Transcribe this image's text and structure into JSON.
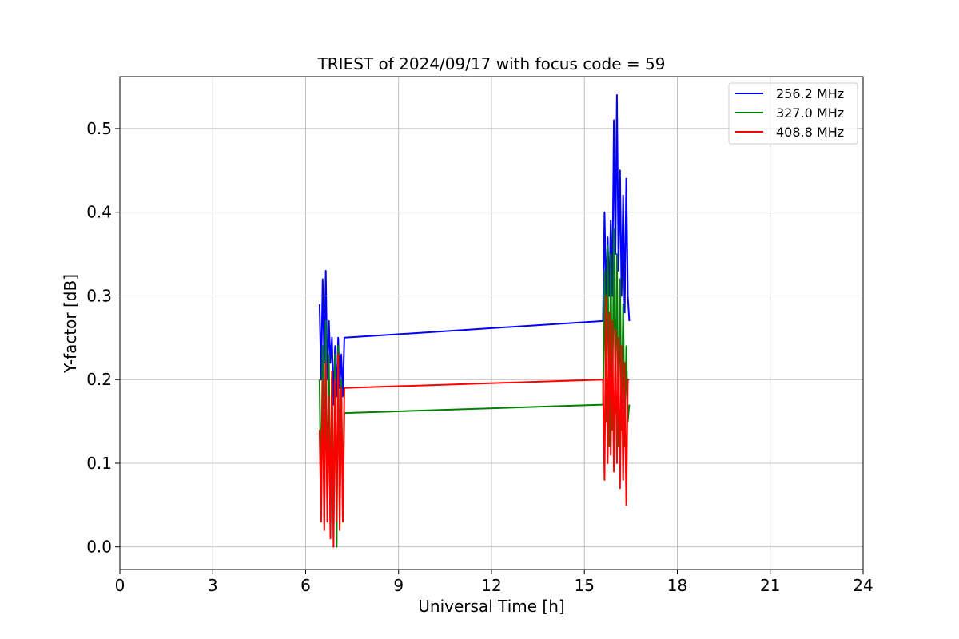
{
  "chart_data": {
    "type": "line",
    "title": "TRIEST of 2024/09/17 with focus code = 59",
    "xlabel": "Universal Time [h]",
    "ylabel": "Y-factor [dB]",
    "xlim": [
      0,
      24
    ],
    "ylim": [
      -0.027,
      0.562
    ],
    "xticks": [
      0,
      3,
      6,
      9,
      12,
      15,
      18,
      21,
      24
    ],
    "xtick_labels": [
      "0",
      "3",
      "6",
      "9",
      "12",
      "15",
      "18",
      "21",
      "24"
    ],
    "yticks": [
      0.0,
      0.1,
      0.2,
      0.3,
      0.4,
      0.5
    ],
    "ytick_labels": [
      "0.0",
      "0.1",
      "0.2",
      "0.3",
      "0.4",
      "0.5"
    ],
    "grid": true,
    "legend_position": "upper right",
    "series": [
      {
        "name": "256.2 MHz",
        "color": "#0000ff",
        "x": [
          6.45,
          6.5,
          6.55,
          6.6,
          6.65,
          6.7,
          6.75,
          6.8,
          6.85,
          6.9,
          6.95,
          7.0,
          7.05,
          7.1,
          7.15,
          7.2,
          7.25,
          15.6,
          15.65,
          15.7,
          15.75,
          15.8,
          15.85,
          15.9,
          15.95,
          16.0,
          16.05,
          16.1,
          16.15,
          16.2,
          16.25,
          16.3,
          16.35,
          16.4,
          16.45
        ],
        "y": [
          0.29,
          0.2,
          0.32,
          0.22,
          0.33,
          0.2,
          0.27,
          0.22,
          0.25,
          0.17,
          0.24,
          0.18,
          0.25,
          0.19,
          0.23,
          0.18,
          0.25,
          0.27,
          0.4,
          0.3,
          0.37,
          0.3,
          0.39,
          0.3,
          0.51,
          0.35,
          0.54,
          0.33,
          0.45,
          0.3,
          0.42,
          0.28,
          0.44,
          0.3,
          0.27
        ]
      },
      {
        "name": "327.0 MHz",
        "color": "#008000",
        "x": [
          6.45,
          6.5,
          6.55,
          6.6,
          6.65,
          6.7,
          6.75,
          6.8,
          6.85,
          6.9,
          6.95,
          7.0,
          7.05,
          7.1,
          7.15,
          7.2,
          7.25,
          15.6,
          15.65,
          15.7,
          15.75,
          15.8,
          15.85,
          15.9,
          15.95,
          16.0,
          16.05,
          16.1,
          16.15,
          16.2,
          16.25,
          16.3,
          16.35,
          16.4,
          16.45
        ],
        "y": [
          0.2,
          0.05,
          0.24,
          0.03,
          0.27,
          0.04,
          0.23,
          0.02,
          0.21,
          0.01,
          0.23,
          0.0,
          0.24,
          0.03,
          0.2,
          0.04,
          0.16,
          0.17,
          0.33,
          0.15,
          0.36,
          0.12,
          0.35,
          0.14,
          0.38,
          0.16,
          0.35,
          0.12,
          0.32,
          0.14,
          0.29,
          0.12,
          0.24,
          0.15,
          0.17
        ]
      },
      {
        "name": "408.8 MHz",
        "color": "#ff0000",
        "x": [
          6.45,
          6.5,
          6.55,
          6.6,
          6.65,
          6.7,
          6.75,
          6.8,
          6.85,
          6.9,
          6.95,
          7.0,
          7.05,
          7.1,
          7.15,
          7.2,
          7.25,
          15.6,
          15.65,
          15.7,
          15.75,
          15.8,
          15.85,
          15.9,
          15.95,
          16.0,
          16.05,
          16.1,
          16.15,
          16.2,
          16.25,
          16.3,
          16.35,
          16.4,
          16.45
        ],
        "y": [
          0.14,
          0.03,
          0.2,
          0.02,
          0.22,
          0.03,
          0.18,
          0.01,
          0.21,
          0.0,
          0.2,
          0.03,
          0.23,
          0.02,
          0.19,
          0.03,
          0.19,
          0.2,
          0.08,
          0.3,
          0.1,
          0.28,
          0.11,
          0.27,
          0.09,
          0.26,
          0.1,
          0.25,
          0.07,
          0.24,
          0.08,
          0.22,
          0.05,
          0.2,
          0.2
        ]
      }
    ]
  }
}
